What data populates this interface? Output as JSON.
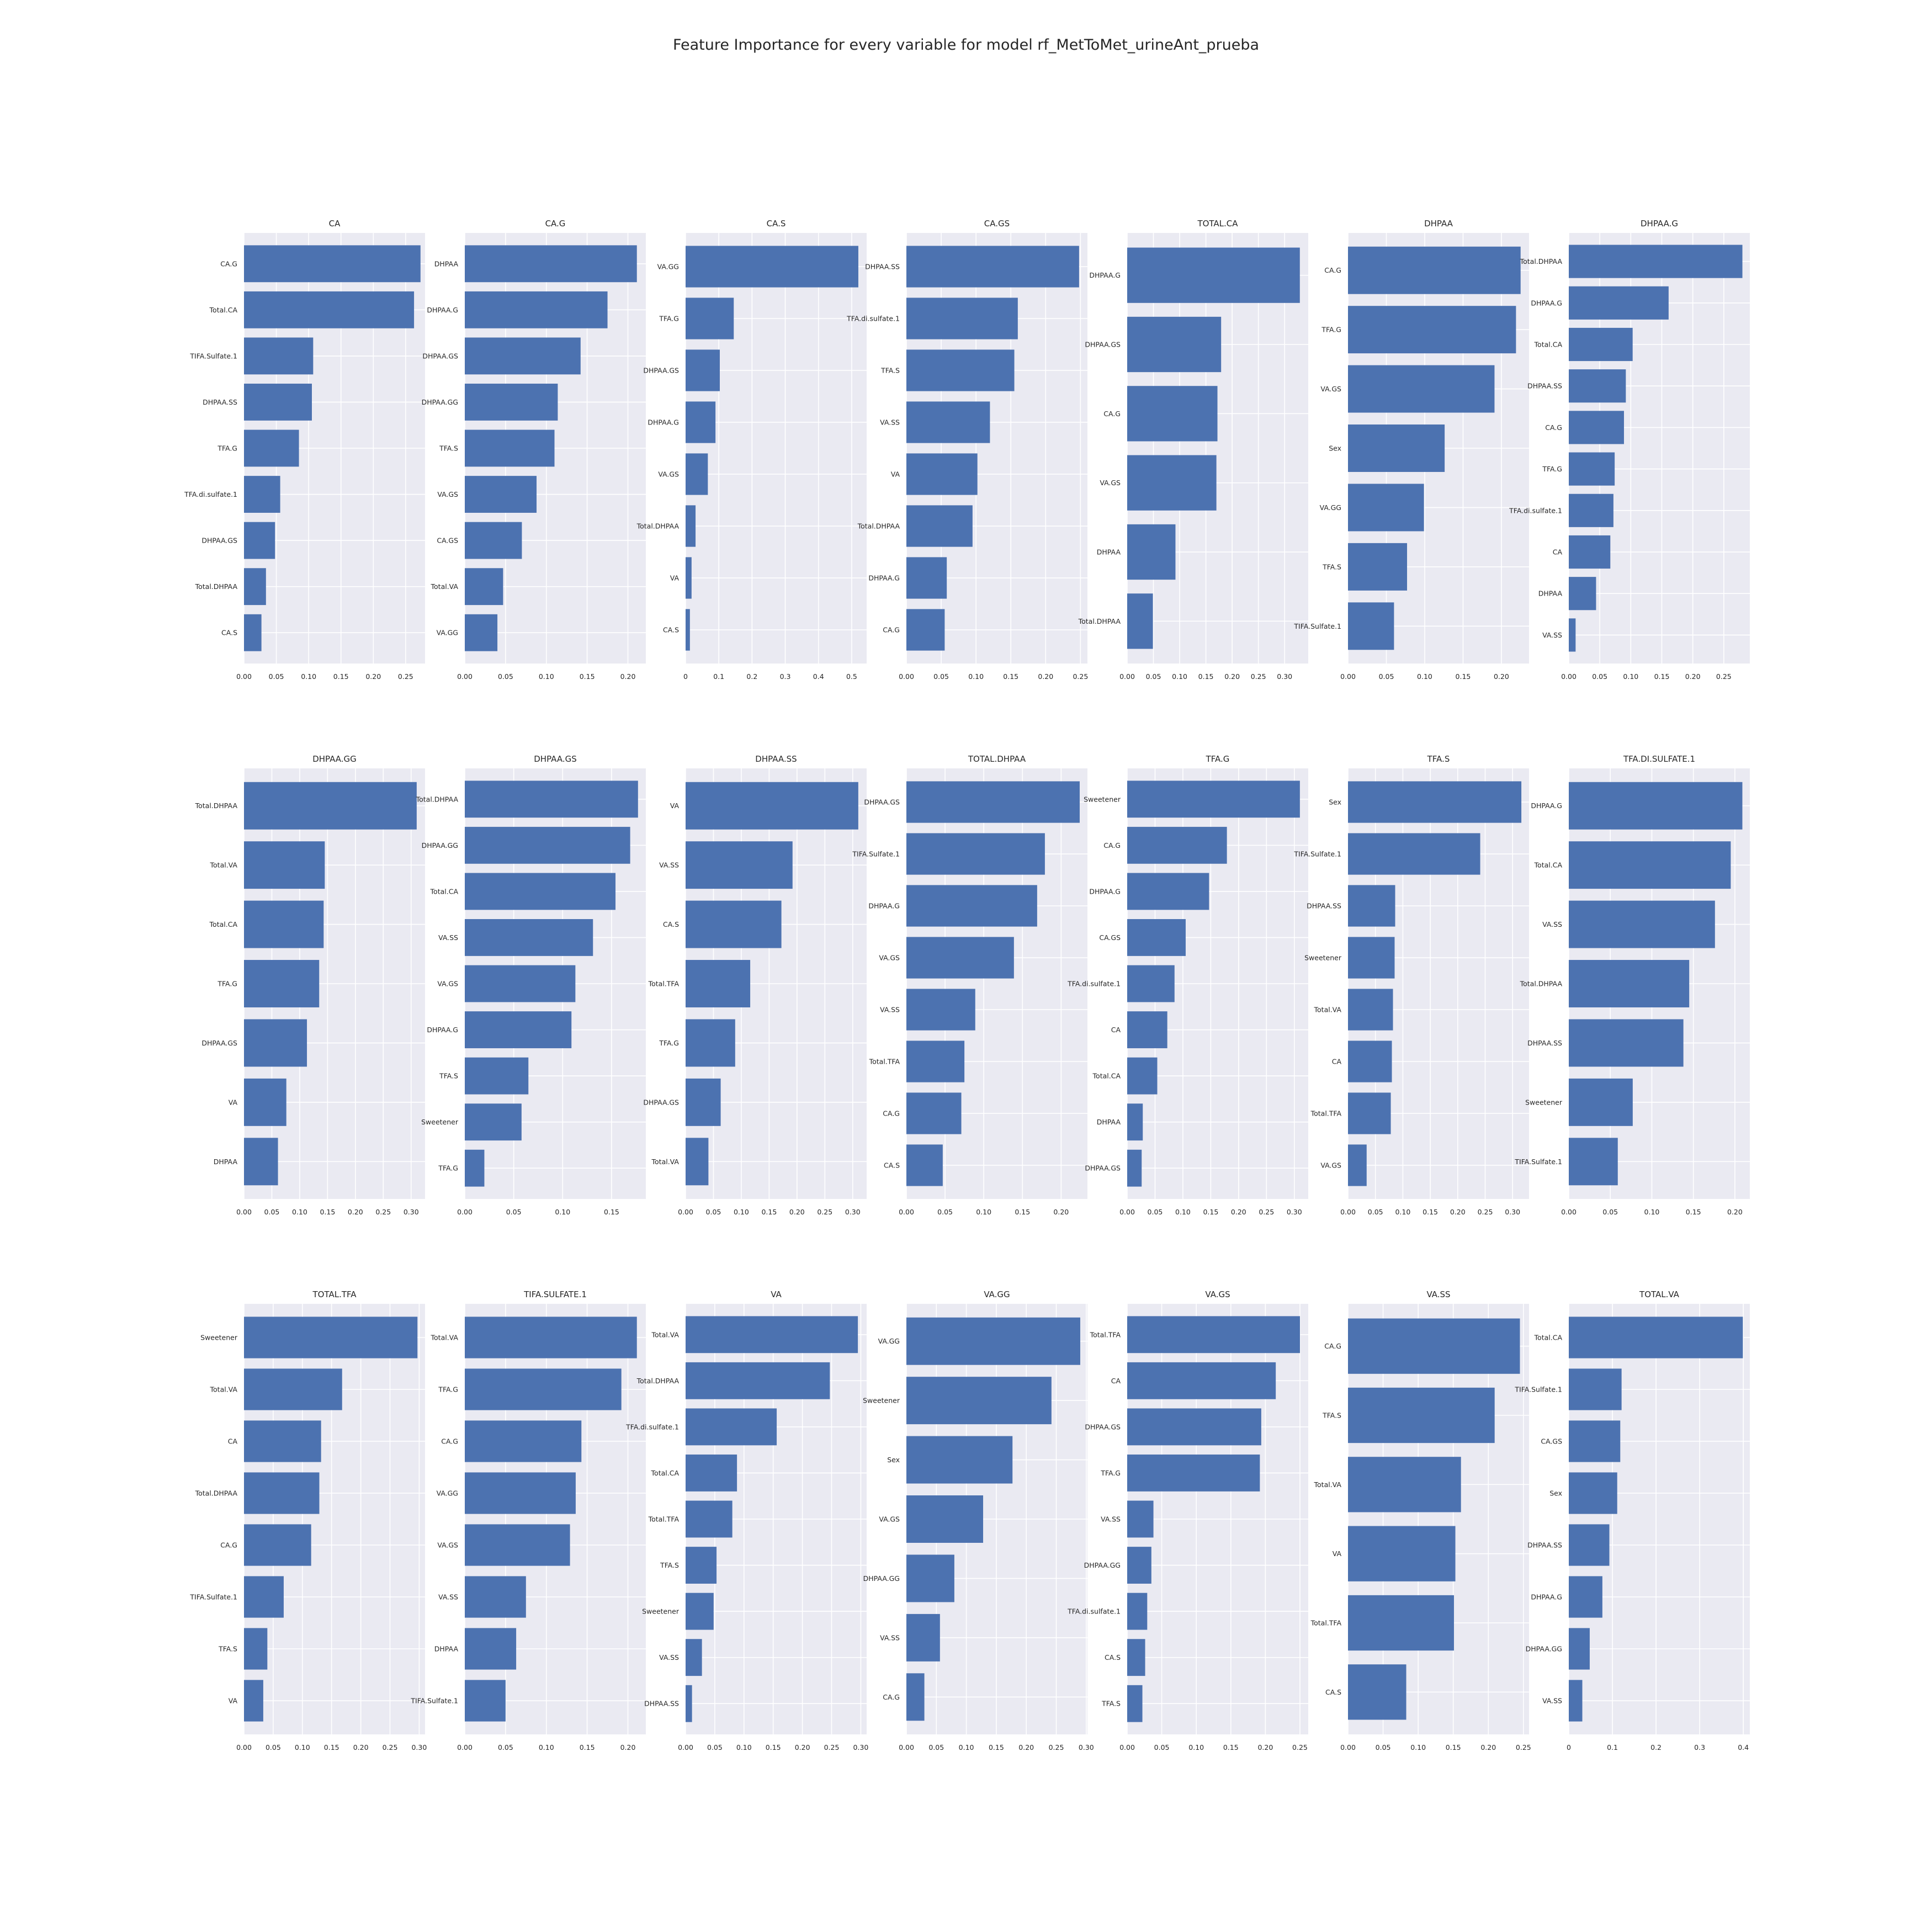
{
  "figure": {
    "title": "Feature Importance for every variable for model rf_MetToMet_urineAnt_prueba"
  },
  "style": {
    "bar_color": "#4c72b0",
    "axes_background": "#eaeaf2",
    "grid_color": "#ffffff"
  },
  "chart_data": [
    {
      "type": "bar",
      "orientation": "horizontal",
      "title": "CA",
      "xlim": [
        0,
        0.28
      ],
      "xticks": [
        0,
        0.05,
        0.1,
        0.15,
        0.2,
        0.25
      ],
      "xtick_labels": [
        "0.00",
        "0.05",
        "0.10",
        "0.15",
        "0.20",
        "0.25"
      ],
      "categories": [
        "CA.G",
        "Total.CA",
        "TIFA.Sulfate.1",
        "DHPAA.SS",
        "TFA.G",
        "TFA.di.sulfate.1",
        "DHPAA.GS",
        "Total.DHPAA",
        "CA.S"
      ],
      "values": [
        0.273,
        0.263,
        0.107,
        0.105,
        0.085,
        0.056,
        0.048,
        0.034,
        0.027
      ]
    },
    {
      "type": "bar",
      "orientation": "horizontal",
      "title": "CA.G",
      "xlim": [
        0,
        0.222
      ],
      "xticks": [
        0,
        0.05,
        0.1,
        0.15,
        0.2
      ],
      "xtick_labels": [
        "0.00",
        "0.05",
        "0.10",
        "0.15",
        "0.20"
      ],
      "categories": [
        "DHPAA",
        "DHPAA.G",
        "DHPAA.GS",
        "DHPAA.GG",
        "TFA.S",
        "VA.GS",
        "CA.GS",
        "Total.VA",
        "VA.GG"
      ],
      "values": [
        0.211,
        0.175,
        0.142,
        0.114,
        0.11,
        0.088,
        0.07,
        0.047,
        0.04
      ]
    },
    {
      "type": "bar",
      "orientation": "horizontal",
      "title": "CA.S",
      "xlim": [
        0,
        0.545
      ],
      "xticks": [
        0,
        0.1,
        0.2,
        0.3,
        0.4,
        0.5
      ],
      "xtick_labels": [
        "0",
        "0.1",
        "0.2",
        "0.3",
        "0.4",
        "0.5"
      ],
      "categories": [
        "VA.GG",
        "TFA.G",
        "DHPAA.GS",
        "DHPAA.G",
        "VA.GS",
        "Total.DHPAA",
        "VA",
        "CA.S"
      ],
      "values": [
        0.52,
        0.145,
        0.103,
        0.09,
        0.067,
        0.03,
        0.018,
        0.013
      ]
    },
    {
      "type": "bar",
      "orientation": "horizontal",
      "title": "CA.GS",
      "xlim": [
        0,
        0.26
      ],
      "xticks": [
        0,
        0.05,
        0.1,
        0.15,
        0.2,
        0.25
      ],
      "xtick_labels": [
        "0.00",
        "0.05",
        "0.10",
        "0.15",
        "0.20",
        "0.25"
      ],
      "categories": [
        "DHPAA.SS",
        "TFA.di.sulfate.1",
        "TFA.S",
        "VA.SS",
        "VA",
        "Total.DHPAA",
        "DHPAA.G",
        "CA.G"
      ],
      "values": [
        0.248,
        0.16,
        0.155,
        0.12,
        0.102,
        0.095,
        0.058,
        0.055
      ]
    },
    {
      "type": "bar",
      "orientation": "horizontal",
      "title": "TOTAL.CA",
      "xlim": [
        0,
        0.345
      ],
      "xticks": [
        0,
        0.05,
        0.1,
        0.15,
        0.2,
        0.25,
        0.3
      ],
      "xtick_labels": [
        "0.00",
        "0.05",
        "0.10",
        "0.15",
        "0.20",
        "0.25",
        "0.30"
      ],
      "categories": [
        "DHPAA.G",
        "DHPAA.GS",
        "CA.G",
        "VA.GS",
        "DHPAA",
        "Total.DHPAA"
      ],
      "values": [
        0.329,
        0.179,
        0.172,
        0.17,
        0.092,
        0.049
      ]
    },
    {
      "type": "bar",
      "orientation": "horizontal",
      "title": "DHPAA",
      "xlim": [
        0,
        0.236
      ],
      "xticks": [
        0,
        0.05,
        0.1,
        0.15,
        0.2
      ],
      "xtick_labels": [
        "0.00",
        "0.05",
        "0.10",
        "0.15",
        "0.20"
      ],
      "categories": [
        "CA.G",
        "TFA.G",
        "VA.GS",
        "Sex",
        "VA.GG",
        "TFA.S",
        "TIFA.Sulfate.1"
      ],
      "values": [
        0.225,
        0.219,
        0.191,
        0.126,
        0.099,
        0.077,
        0.06
      ]
    },
    {
      "type": "bar",
      "orientation": "horizontal",
      "title": "DHPAA.G",
      "xlim": [
        0,
        0.292
      ],
      "xticks": [
        0,
        0.05,
        0.1,
        0.15,
        0.2,
        0.25
      ],
      "xtick_labels": [
        "0.00",
        "0.05",
        "0.10",
        "0.15",
        "0.20",
        "0.25"
      ],
      "categories": [
        "Total.DHPAA",
        "DHPAA.G",
        "Total.CA",
        "DHPAA.SS",
        "CA.G",
        "TFA.G",
        "TFA.di.sulfate.1",
        "CA",
        "DHPAA",
        "VA.SS"
      ],
      "values": [
        0.28,
        0.161,
        0.103,
        0.092,
        0.089,
        0.074,
        0.072,
        0.067,
        0.044,
        0.011
      ]
    },
    {
      "type": "bar",
      "orientation": "horizontal",
      "title": "DHPAA.GG",
      "xlim": [
        0,
        0.325
      ],
      "xticks": [
        0,
        0.05,
        0.1,
        0.15,
        0.2,
        0.25,
        0.3
      ],
      "xtick_labels": [
        "0.00",
        "0.05",
        "0.10",
        "0.15",
        "0.20",
        "0.25",
        "0.30"
      ],
      "categories": [
        "Total.DHPAA",
        "Total.VA",
        "Total.CA",
        "TFA.G",
        "DHPAA.GS",
        "VA",
        "DHPAA"
      ],
      "values": [
        0.31,
        0.145,
        0.143,
        0.135,
        0.113,
        0.076,
        0.061
      ]
    },
    {
      "type": "bar",
      "orientation": "horizontal",
      "title": "DHPAA.GS",
      "xlim": [
        0,
        0.185
      ],
      "xticks": [
        0,
        0.05,
        0.1,
        0.15
      ],
      "xtick_labels": [
        "0.00",
        "0.05",
        "0.10",
        "0.15"
      ],
      "categories": [
        "Total.DHPAA",
        "DHPAA.GG",
        "Total.CA",
        "VA.SS",
        "VA.GS",
        "DHPAA.G",
        "TFA.S",
        "Sweetener",
        "TFA.G"
      ],
      "values": [
        0.177,
        0.169,
        0.154,
        0.131,
        0.113,
        0.109,
        0.065,
        0.058,
        0.02
      ]
    },
    {
      "type": "bar",
      "orientation": "horizontal",
      "title": "DHPAA.SS",
      "xlim": [
        0,
        0.325
      ],
      "xticks": [
        0,
        0.05,
        0.1,
        0.15,
        0.2,
        0.25,
        0.3
      ],
      "xtick_labels": [
        "0.00",
        "0.05",
        "0.10",
        "0.15",
        "0.20",
        "0.25",
        "0.30"
      ],
      "categories": [
        "VA",
        "VA.SS",
        "CA.S",
        "Total.TFA",
        "TFA.G",
        "DHPAA.GS",
        "Total.VA"
      ],
      "values": [
        0.31,
        0.192,
        0.172,
        0.116,
        0.089,
        0.063,
        0.041
      ]
    },
    {
      "type": "bar",
      "orientation": "horizontal",
      "title": "TOTAL.DHPAA",
      "xlim": [
        0,
        0.234
      ],
      "xticks": [
        0,
        0.05,
        0.1,
        0.15,
        0.2
      ],
      "xtick_labels": [
        "0.00",
        "0.05",
        "0.10",
        "0.15",
        "0.20"
      ],
      "categories": [
        "DHPAA.GS",
        "TIFA.Sulfate.1",
        "DHPAA.G",
        "VA.GS",
        "VA.SS",
        "Total.TFA",
        "CA.G",
        "CA.S"
      ],
      "values": [
        0.224,
        0.179,
        0.169,
        0.139,
        0.089,
        0.075,
        0.071,
        0.047
      ]
    },
    {
      "type": "bar",
      "orientation": "horizontal",
      "title": "TFA.G",
      "xlim": [
        0,
        0.325
      ],
      "xticks": [
        0,
        0.05,
        0.1,
        0.15,
        0.2,
        0.25,
        0.3
      ],
      "xtick_labels": [
        "0.00",
        "0.05",
        "0.10",
        "0.15",
        "0.20",
        "0.25",
        "0.30"
      ],
      "categories": [
        "Sweetener",
        "CA.G",
        "DHPAA.G",
        "CA.GS",
        "TFA.di.sulfate.1",
        "CA",
        "Total.CA",
        "DHPAA",
        "DHPAA.GS"
      ],
      "values": [
        0.31,
        0.179,
        0.147,
        0.105,
        0.085,
        0.072,
        0.054,
        0.028,
        0.026
      ]
    },
    {
      "type": "bar",
      "orientation": "horizontal",
      "title": "TFA.S",
      "xlim": [
        0,
        0.33
      ],
      "xticks": [
        0,
        0.05,
        0.1,
        0.15,
        0.2,
        0.25,
        0.3
      ],
      "xtick_labels": [
        "0.00",
        "0.05",
        "0.10",
        "0.15",
        "0.20",
        "0.25",
        "0.30"
      ],
      "categories": [
        "Sex",
        "TIFA.Sulfate.1",
        "DHPAA.SS",
        "Sweetener",
        "Total.VA",
        "CA",
        "Total.TFA",
        "VA.GS"
      ],
      "values": [
        0.316,
        0.241,
        0.086,
        0.085,
        0.082,
        0.08,
        0.078,
        0.034
      ]
    },
    {
      "type": "bar",
      "orientation": "horizontal",
      "title": "TFA.DI.SULFATE.1",
      "xlim": [
        0,
        0.218
      ],
      "xticks": [
        0,
        0.05,
        0.1,
        0.15,
        0.2
      ],
      "xtick_labels": [
        "0.00",
        "0.05",
        "0.10",
        "0.15",
        "0.20"
      ],
      "categories": [
        "DHPAA.G",
        "Total.CA",
        "VA.SS",
        "Total.DHPAA",
        "DHPAA.SS",
        "Sweetener",
        "TIFA.Sulfate.1"
      ],
      "values": [
        0.209,
        0.195,
        0.176,
        0.145,
        0.138,
        0.077,
        0.059
      ]
    },
    {
      "type": "bar",
      "orientation": "horizontal",
      "title": "TOTAL.TFA",
      "xlim": [
        0,
        0.31
      ],
      "xticks": [
        0,
        0.05,
        0.1,
        0.15,
        0.2,
        0.25,
        0.3
      ],
      "xtick_labels": [
        "0.00",
        "0.05",
        "0.10",
        "0.15",
        "0.20",
        "0.25",
        "0.30"
      ],
      "categories": [
        "Sweetener",
        "Total.VA",
        "CA",
        "Total.DHPAA",
        "CA.G",
        "TIFA.Sulfate.1",
        "TFA.S",
        "VA"
      ],
      "values": [
        0.297,
        0.168,
        0.132,
        0.129,
        0.115,
        0.068,
        0.04,
        0.033
      ]
    },
    {
      "type": "bar",
      "orientation": "horizontal",
      "title": "TIFA.SULFATE.1",
      "xlim": [
        0,
        0.222
      ],
      "xticks": [
        0,
        0.05,
        0.1,
        0.15,
        0.2
      ],
      "xtick_labels": [
        "0.00",
        "0.05",
        "0.10",
        "0.15",
        "0.20"
      ],
      "categories": [
        "Total.VA",
        "TFA.G",
        "CA.G",
        "VA.GG",
        "VA.GS",
        "VA.SS",
        "DHPAA",
        "TIFA.Sulfate.1"
      ],
      "values": [
        0.211,
        0.192,
        0.143,
        0.136,
        0.129,
        0.075,
        0.063,
        0.05
      ]
    },
    {
      "type": "bar",
      "orientation": "horizontal",
      "title": "VA",
      "xlim": [
        0,
        0.31
      ],
      "xticks": [
        0,
        0.05,
        0.1,
        0.15,
        0.2,
        0.25,
        0.3
      ],
      "xtick_labels": [
        "0.00",
        "0.05",
        "0.10",
        "0.15",
        "0.20",
        "0.25",
        "0.30"
      ],
      "categories": [
        "Total.VA",
        "Total.DHPAA",
        "TFA.di.sulfate.1",
        "Total.CA",
        "Total.TFA",
        "TFA.S",
        "Sweetener",
        "VA.SS",
        "DHPAA.SS"
      ],
      "values": [
        0.295,
        0.247,
        0.156,
        0.088,
        0.08,
        0.053,
        0.048,
        0.028,
        0.011
      ]
    },
    {
      "type": "bar",
      "orientation": "horizontal",
      "title": "VA.GG",
      "xlim": [
        0,
        0.302
      ],
      "xticks": [
        0,
        0.05,
        0.1,
        0.15,
        0.2,
        0.25,
        0.3
      ],
      "xtick_labels": [
        "0.00",
        "0.05",
        "0.10",
        "0.15",
        "0.20",
        "0.25",
        "0.30"
      ],
      "categories": [
        "VA.GG",
        "Sweetener",
        "Sex",
        "VA.GS",
        "DHPAA.GG",
        "VA.SS",
        "CA.G"
      ],
      "values": [
        0.29,
        0.242,
        0.177,
        0.128,
        0.08,
        0.056,
        0.03
      ]
    },
    {
      "type": "bar",
      "orientation": "horizontal",
      "title": "VA.GS",
      "xlim": [
        0,
        0.262
      ],
      "xticks": [
        0,
        0.05,
        0.1,
        0.15,
        0.2,
        0.25
      ],
      "xtick_labels": [
        "0.00",
        "0.05",
        "0.10",
        "0.15",
        "0.20",
        "0.25"
      ],
      "categories": [
        "Total.TFA",
        "CA",
        "DHPAA.GS",
        "TFA.G",
        "VA.SS",
        "DHPAA.GG",
        "TFA.di.sulfate.1",
        "CA.S",
        "TFA.S"
      ],
      "values": [
        0.25,
        0.215,
        0.194,
        0.192,
        0.038,
        0.035,
        0.029,
        0.026,
        0.022
      ]
    },
    {
      "type": "bar",
      "orientation": "horizontal",
      "title": "VA.SS",
      "xlim": [
        0,
        0.258
      ],
      "xticks": [
        0,
        0.05,
        0.1,
        0.15,
        0.2,
        0.25
      ],
      "xtick_labels": [
        "0.00",
        "0.05",
        "0.10",
        "0.15",
        "0.20",
        "0.25"
      ],
      "categories": [
        "CA.G",
        "TFA.S",
        "Total.VA",
        "VA",
        "Total.TFA",
        "CA.S"
      ],
      "values": [
        0.245,
        0.209,
        0.161,
        0.153,
        0.151,
        0.083
      ]
    },
    {
      "type": "bar",
      "orientation": "horizontal",
      "title": "TOTAL.VA",
      "xlim": [
        0,
        0.415
      ],
      "xticks": [
        0,
        0.1,
        0.2,
        0.3,
        0.4
      ],
      "xtick_labels": [
        "0",
        "0.1",
        "0.2",
        "0.3",
        "0.4"
      ],
      "categories": [
        "Total.CA",
        "TIFA.Sulfate.1",
        "CA.GS",
        "Sex",
        "DHPAA.SS",
        "DHPAA.G",
        "DHPAA.GG",
        "VA.SS"
      ],
      "values": [
        0.399,
        0.121,
        0.118,
        0.111,
        0.093,
        0.077,
        0.048,
        0.031
      ]
    }
  ]
}
